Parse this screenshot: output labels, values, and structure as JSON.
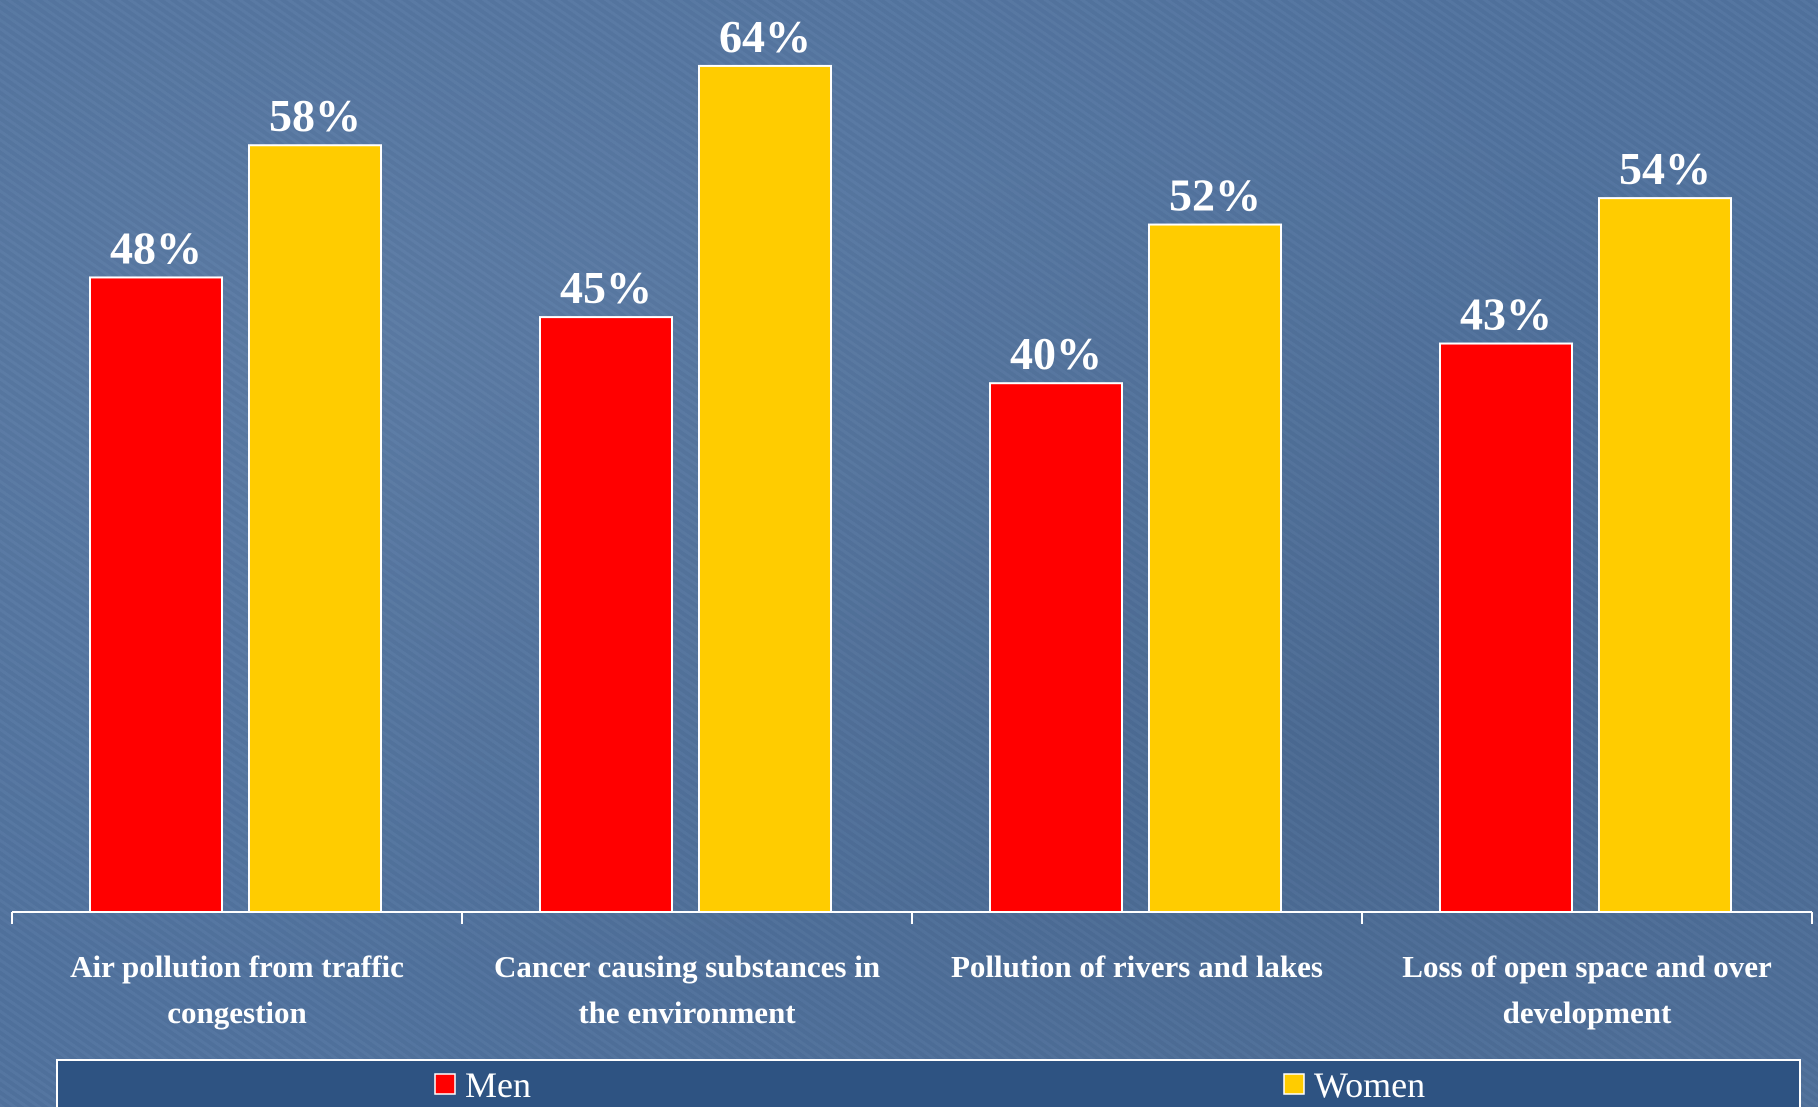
{
  "chart_data": {
    "type": "bar",
    "categories": [
      [
        "Air pollution from traffic",
        "congestion"
      ],
      [
        "Cancer causing substances in",
        "the environment"
      ],
      [
        "Pollution of rivers and lakes"
      ],
      [
        "Loss of open space and over",
        "development"
      ]
    ],
    "series": [
      {
        "name": "Men",
        "color": "#ff0000",
        "values": [
          48,
          45,
          40,
          43
        ],
        "labels": [
          "48%",
          "45%",
          "40%",
          "43%"
        ]
      },
      {
        "name": "Women",
        "color": "#ffcc00",
        "values": [
          58,
          64,
          52,
          54
        ],
        "labels": [
          "58%",
          "64%",
          "52%",
          "54%"
        ]
      }
    ],
    "title": "",
    "xlabel": "",
    "ylabel": "",
    "ylim": [
      0,
      64
    ],
    "grid": false,
    "legend_position": "bottom"
  }
}
